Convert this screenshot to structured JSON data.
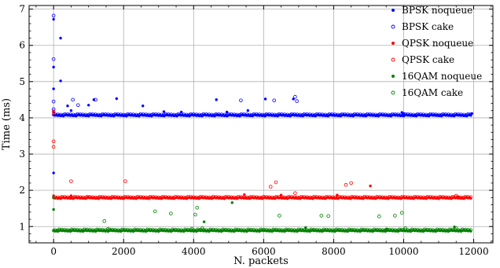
{
  "chart_data": {
    "type": "scatter",
    "xlabel": "N. packets",
    "ylabel": "Time (ms)",
    "xlim": [
      -700,
      12550
    ],
    "ylim": [
      0.55,
      7.1
    ],
    "xticks": [
      0,
      2000,
      4000,
      6000,
      8000,
      10000,
      12000
    ],
    "yticks": [
      1,
      2,
      3,
      4,
      5,
      6,
      7
    ],
    "grid": true,
    "legend_position": "top-right",
    "series": [
      {
        "name": "BPSK noqueue",
        "color": "#0000ff",
        "marker": "filled",
        "baseline": 4.07,
        "points": [
          [
            0,
            6.72
          ],
          [
            0,
            5.4
          ],
          [
            0,
            4.8
          ],
          [
            0,
            2.48
          ],
          [
            0,
            4.15
          ],
          [
            200,
            6.2
          ],
          [
            200,
            5.02
          ],
          [
            400,
            4.33
          ],
          [
            500,
            4.2
          ],
          [
            1000,
            4.35
          ],
          [
            1150,
            4.5
          ],
          [
            1800,
            4.53
          ],
          [
            2550,
            4.33
          ],
          [
            3150,
            4.17
          ],
          [
            3650,
            4.16
          ],
          [
            4650,
            4.5
          ],
          [
            4950,
            4.16
          ],
          [
            5550,
            4.2
          ],
          [
            6050,
            4.52
          ],
          [
            6850,
            4.52
          ],
          [
            9950,
            4.15
          ],
          [
            10000,
            4.12
          ],
          [
            11950,
            4.12
          ]
        ]
      },
      {
        "name": "BPSK cake",
        "color": "#0000ff",
        "marker": "open",
        "baseline": 4.09,
        "points": [
          [
            0,
            6.82
          ],
          [
            0,
            5.62
          ],
          [
            0,
            4.45
          ],
          [
            0,
            4.24
          ],
          [
            550,
            4.5
          ],
          [
            700,
            4.35
          ],
          [
            1200,
            4.5
          ],
          [
            5350,
            4.48
          ],
          [
            6300,
            4.48
          ],
          [
            6900,
            4.58
          ],
          [
            6950,
            4.46
          ]
        ]
      },
      {
        "name": "QPSK noqueue",
        "color": "#ff0000",
        "marker": "filled",
        "baseline": 1.79,
        "points": [
          [
            0,
            4.12
          ],
          [
            0,
            1.85
          ],
          [
            500,
            1.85
          ],
          [
            1000,
            1.82
          ],
          [
            5450,
            1.88
          ],
          [
            6500,
            1.87
          ],
          [
            8100,
            1.87
          ],
          [
            9050,
            2.12
          ],
          [
            11550,
            1.82
          ]
        ]
      },
      {
        "name": "QPSK cake",
        "color": "#ff0000",
        "marker": "open",
        "baseline": 1.81,
        "points": [
          [
            0,
            3.35
          ],
          [
            0,
            3.2
          ],
          [
            0,
            4.18
          ],
          [
            500,
            2.25
          ],
          [
            2050,
            2.25
          ],
          [
            6200,
            2.1
          ],
          [
            6350,
            2.22
          ],
          [
            6900,
            1.92
          ],
          [
            8350,
            2.15
          ],
          [
            8500,
            2.2
          ],
          [
            11500,
            1.85
          ]
        ]
      },
      {
        "name": "16QAM noqueue",
        "color": "#008000",
        "marker": "filled",
        "baseline": 0.885,
        "points": [
          [
            0,
            1.8
          ],
          [
            0,
            1.47
          ],
          [
            4300,
            1.13
          ],
          [
            5100,
            1.66
          ],
          [
            7200,
            0.97
          ],
          [
            9500,
            0.93
          ],
          [
            11450,
            0.99
          ]
        ]
      },
      {
        "name": "16QAM cake",
        "color": "#008000",
        "marker": "open",
        "baseline": 0.905,
        "points": [
          [
            1450,
            1.15
          ],
          [
            1550,
            0.93
          ],
          [
            2900,
            1.42
          ],
          [
            3350,
            1.36
          ],
          [
            3950,
            0.94
          ],
          [
            4050,
            1.33
          ],
          [
            4100,
            1.52
          ],
          [
            4250,
            0.95
          ],
          [
            6450,
            1.3
          ],
          [
            7650,
            1.3
          ],
          [
            7850,
            1.29
          ],
          [
            9300,
            1.28
          ],
          [
            9750,
            1.3
          ],
          [
            9950,
            1.38
          ],
          [
            10050,
            0.95
          ],
          [
            11500,
            0.95
          ]
        ]
      }
    ]
  }
}
